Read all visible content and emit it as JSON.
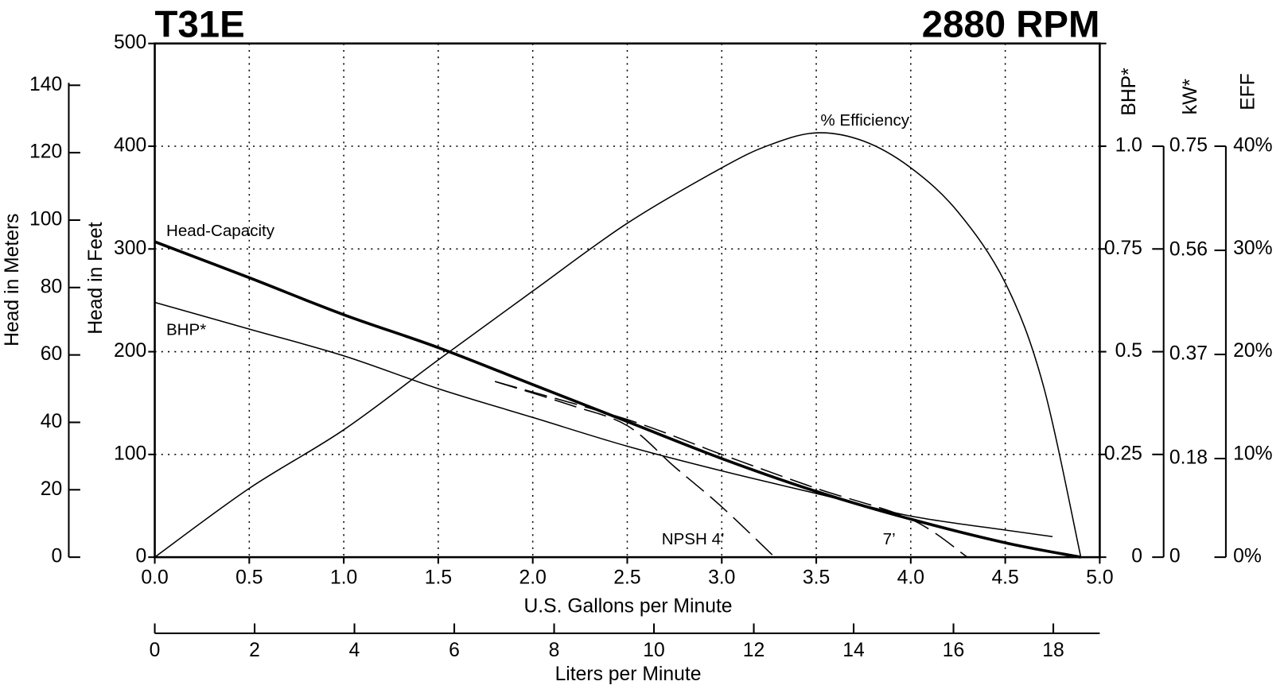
{
  "chart_data": {
    "type": "line",
    "title": "T31E",
    "subtitle": "2880 RPM",
    "xlabel": "U.S. Gallons per Minute",
    "xlim": [
      0,
      5
    ],
    "xticks": [
      {
        "value": 0,
        "label": "0.0"
      },
      0.5,
      {
        "value": 1,
        "label": "1.0"
      },
      1.5,
      {
        "value": 2,
        "label": "2.0"
      },
      2.5,
      {
        "value": 3,
        "label": "3.0"
      },
      3.5,
      {
        "value": 4,
        "label": "4.0"
      },
      4.5,
      {
        "value": 5,
        "label": "5.0"
      }
    ],
    "ylabel": "Head in Feet",
    "ylim": [
      0,
      500
    ],
    "yticks": [
      0,
      100,
      200,
      300,
      400,
      500
    ],
    "grid": true,
    "meters_axis": {
      "label": "Head in Meters",
      "ylim": [
        0,
        152.4
      ],
      "yticks": [
        0,
        20,
        40,
        60,
        80,
        100,
        120,
        140
      ]
    },
    "liters_axis": {
      "label": "Liters per Minute",
      "xlim": [
        0,
        18.93
      ],
      "xticks": [
        0,
        2,
        4,
        6,
        8,
        10,
        12,
        14,
        16,
        18
      ]
    },
    "bhp_axis": {
      "label": "BHP*",
      "ylim": [
        0,
        1.25
      ],
      "yticks": [
        0,
        0.25,
        0.5,
        0.75,
        {
          "value": 1,
          "label": "1.0"
        }
      ]
    },
    "kw_axis": {
      "label": "kW*",
      "ylim": [
        0,
        0.9375
      ],
      "yticks": [
        0,
        0.18,
        0.37,
        0.56,
        0.75
      ]
    },
    "eff_axis": {
      "label": "EFF",
      "ylim": [
        0,
        50
      ],
      "yticks": [
        {
          "value": 0,
          "label": "0%"
        },
        {
          "value": 10,
          "label": "10%"
        },
        {
          "value": 20,
          "label": "20%"
        },
        {
          "value": 30,
          "label": "30%"
        },
        {
          "value": 40,
          "label": "40%"
        }
      ]
    },
    "series": [
      {
        "name": "Head-Capacity",
        "color": "#000000",
        "axis": "y",
        "dashed": false,
        "width": 3.5,
        "x": [
          0,
          0.5,
          1.0,
          1.5,
          2.0,
          2.5,
          3.0,
          3.5,
          4.0,
          4.5,
          4.9
        ],
        "values": [
          307,
          272,
          236,
          204,
          168,
          132,
          96,
          64,
          37,
          14,
          0
        ]
      },
      {
        "name": "BHP*",
        "color": "#000000",
        "axis": "bhp",
        "dashed": false,
        "width": 1.5,
        "x": [
          0,
          0.5,
          1.0,
          1.5,
          2.0,
          2.5,
          3.0,
          3.5,
          4.0,
          4.5,
          4.75
        ],
        "values": [
          0.62,
          0.555,
          0.49,
          0.41,
          0.34,
          0.27,
          0.21,
          0.155,
          0.1,
          0.066,
          0.05
        ]
      },
      {
        "name": "% Efficiency",
        "color": "#000000",
        "axis": "eff",
        "dashed": false,
        "width": 1.5,
        "x": [
          0,
          0.5,
          1.0,
          1.5,
          2.0,
          2.5,
          3.0,
          3.25,
          3.5,
          3.75,
          4.0,
          4.25,
          4.5,
          4.7,
          4.9
        ],
        "values": [
          0,
          6.7,
          12.4,
          19.2,
          25.9,
          32.5,
          37.9,
          40.1,
          41.3,
          40.5,
          37.9,
          33.6,
          26.7,
          16.8,
          0
        ]
      },
      {
        "name": "NPSH  4’",
        "color": "#000000",
        "axis": "y",
        "dashed": true,
        "width": 1.5,
        "x": [
          1.8,
          2.2,
          2.5,
          2.75,
          3.0,
          3.28
        ],
        "values": [
          171,
          148,
          128,
          88,
          49,
          0
        ]
      },
      {
        "name": "7’",
        "color": "#000000",
        "axis": "y",
        "dashed": true,
        "width": 1.5,
        "x": [
          1.8,
          2.5,
          3.0,
          3.5,
          4.0,
          4.3
        ],
        "values": [
          171,
          134,
          100,
          67,
          37,
          0
        ]
      }
    ]
  }
}
